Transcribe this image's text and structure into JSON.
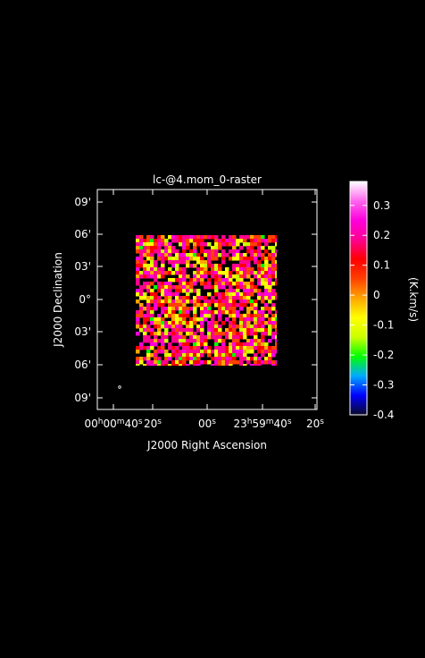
{
  "chart_data": {
    "type": "heatmap",
    "title": "lc-@4.mom_0-raster",
    "xlabel": "J2000 Right Ascension",
    "ylabel": "J2000 Declination",
    "x_ticks": [
      {
        "h": "00",
        "m": "00",
        "s": "40"
      },
      {
        "s": "20"
      },
      {
        "s": "00"
      },
      {
        "h": "23",
        "m": "59",
        "s": "40"
      },
      {
        "s": "20"
      }
    ],
    "y_ticks": [
      "09'",
      "06'",
      "03'",
      "0°",
      "03'",
      "06'",
      "09'"
    ],
    "colorbar": {
      "label": "(K.km/s)",
      "range": [
        -0.4,
        0.38
      ],
      "ticks": [
        "0.3",
        "0.2",
        "0.1",
        "0",
        "-0.1",
        "-0.2",
        "-0.3",
        "-0.4"
      ],
      "tick_values": [
        0.3,
        0.2,
        0.1,
        0,
        -0.1,
        -0.2,
        -0.3,
        -0.4
      ],
      "colors": [
        "#0a0a2a",
        "#0000ff",
        "#00aaff",
        "#00ff00",
        "#ccff00",
        "#ffff00",
        "#ffa500",
        "#ff4000",
        "#ff0000",
        "#ff0090",
        "#ff00dd",
        "#ff66ee",
        "#ffffff"
      ]
    },
    "map": {
      "description_value_range": [
        -0.25,
        0.3
      ],
      "dominant_value": 0.15,
      "grid": "noisy emission map, mostly 0.05–0.2 with scattered negative pixels"
    },
    "grid": false,
    "legend": "right"
  }
}
